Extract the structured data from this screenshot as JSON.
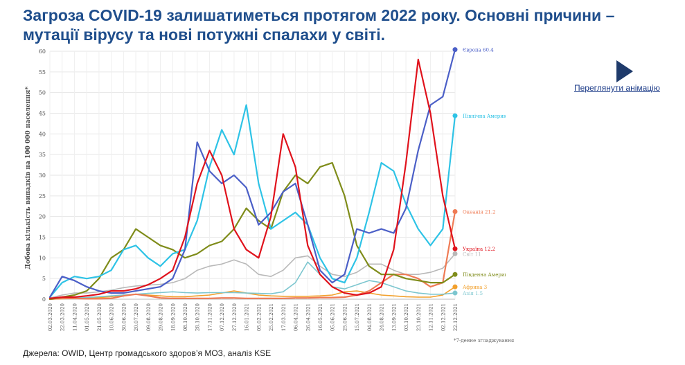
{
  "header": {
    "title": "Загроза COVID-19 залишатиметься протягом 2022 року. Основні причини – мутації вірусу та нові потужні спалахи у світі."
  },
  "animation": {
    "link_label": "Переглянути анімацію",
    "icon": "play-icon"
  },
  "footer": {
    "source": "Джерела: OWID, Центр громадського здоров’я МОЗ, аналіз KSE",
    "note": "*7-денне згладжування"
  },
  "colors": {
    "title": "#1f4e8c",
    "link": "#1f3e8a"
  },
  "chart_data": {
    "type": "line",
    "title": "",
    "ylabel": "Добова кількість випадків на 100 000 населення*",
    "xlabel": "",
    "ylim": [
      0,
      60
    ],
    "yticks": [
      0,
      5,
      10,
      15,
      20,
      25,
      30,
      35,
      40,
      45,
      50,
      55,
      60
    ],
    "grid": true,
    "xticks": [
      "02.03.2020",
      "22.03.2020",
      "11.04.2020",
      "01.05.2020",
      "21.05.2020",
      "10.06.2020",
      "30.06.2020",
      "20.07.2020",
      "09.08.2020",
      "29.08.2020",
      "18.09.2020",
      "08.10.2020",
      "28.10.2020",
      "17.11.2020",
      "07.12.2020",
      "27.12.2020",
      "16.01.2021",
      "05.02.2021",
      "25.02.2021",
      "17.03.2021",
      "06.04.2021",
      "26.04.2021",
      "16.05.2021",
      "05.06.2021",
      "25.06.2021",
      "15.07.2021",
      "04.08.2021",
      "24.08.2021",
      "13.09.2021",
      "03.10.2021",
      "23.10.2021",
      "12.11.2021",
      "02.12.2021",
      "22.12.2021"
    ],
    "x": [
      0,
      3,
      6,
      9,
      12,
      15,
      18,
      21,
      24,
      27,
      30,
      33,
      36,
      39,
      42,
      45,
      48,
      51,
      54,
      57,
      60,
      63,
      66,
      69,
      72,
      75,
      78,
      81,
      84,
      87,
      90,
      93,
      96,
      99
    ],
    "series": [
      {
        "name": "Європа",
        "end_label": "Європа 60.4",
        "color": "#4b5fc7",
        "values": [
          0.5,
          5.5,
          4.5,
          3.0,
          2.0,
          1.5,
          1.5,
          2.0,
          2.5,
          3.0,
          5.0,
          12.0,
          38.0,
          31.0,
          28.0,
          30.0,
          27.0,
          18.0,
          21.0,
          26.0,
          28.0,
          18.0,
          7.0,
          4.0,
          6.0,
          17.0,
          16.0,
          17.0,
          16.0,
          22.0,
          36.0,
          47.0,
          49.0,
          60.4
        ]
      },
      {
        "name": "Північна Америка",
        "end_label": "Північна Америка 44.4",
        "color": "#2ec3e6",
        "values": [
          0.5,
          4.0,
          5.5,
          5.0,
          5.5,
          7.0,
          12.0,
          13.0,
          10.0,
          8.0,
          11.0,
          12.0,
          19.0,
          32.0,
          41.0,
          35.0,
          47.0,
          28.0,
          17.0,
          19.0,
          21.0,
          18.0,
          10.0,
          5.0,
          4.0,
          10.0,
          21.0,
          33.0,
          31.0,
          23.0,
          17.0,
          13.0,
          17.0,
          44.4
        ]
      },
      {
        "name": "Україна",
        "end_label": "Україна 12.2",
        "color": "#e0121c",
        "values": [
          0.2,
          0.5,
          0.5,
          0.8,
          1.2,
          2.0,
          2.0,
          2.5,
          3.5,
          5.0,
          7.0,
          15.0,
          28.0,
          36.0,
          30.0,
          17.0,
          12.0,
          10.0,
          20.0,
          40.0,
          32.0,
          13.0,
          6.0,
          3.0,
          1.5,
          1.0,
          1.5,
          3.0,
          12.0,
          33.0,
          58.0,
          45.0,
          25.0,
          12.2
        ]
      },
      {
        "name": "Південна Америка",
        "end_label": "Південна Америка 6",
        "color": "#7f8c1a",
        "values": [
          0.0,
          0.5,
          1.0,
          2.0,
          5.0,
          10.0,
          12.0,
          17.0,
          15.0,
          13.0,
          12.0,
          10.0,
          11.0,
          13.0,
          14.0,
          17.0,
          22.0,
          19.0,
          17.0,
          26.0,
          30.0,
          28.0,
          32.0,
          33.0,
          25.0,
          13.0,
          8.0,
          6.0,
          6.0,
          5.0,
          4.5,
          4.0,
          4.0,
          6.0
        ]
      },
      {
        "name": "Океанія",
        "end_label": "Океанія 21.2",
        "color": "#ef7b55",
        "values": [
          0,
          0.2,
          0.2,
          0.1,
          0.1,
          0.2,
          0.8,
          1.2,
          0.8,
          0.3,
          0.2,
          0.2,
          0.2,
          0.2,
          0.3,
          0.3,
          0.2,
          0.2,
          0.2,
          0.2,
          0.3,
          0.3,
          0.4,
          0.4,
          0.5,
          1.0,
          2.0,
          4.0,
          6.0,
          6.0,
          5.0,
          3.0,
          4.0,
          21.2
        ]
      },
      {
        "name": "Світ",
        "end_label": "Світ 11",
        "color": "#b9b9b9",
        "values": [
          0.3,
          1.0,
          1.5,
          1.5,
          1.8,
          2.2,
          2.8,
          3.2,
          3.4,
          3.6,
          4.0,
          5.0,
          7.0,
          8.0,
          8.5,
          9.5,
          8.5,
          6.0,
          5.5,
          7.0,
          10.0,
          10.5,
          8.0,
          6.0,
          5.5,
          6.5,
          8.5,
          8.5,
          7.0,
          6.0,
          6.0,
          6.5,
          7.5,
          11.0
        ]
      },
      {
        "name": "Африка",
        "end_label": "Африка 3",
        "color": "#f2a02c",
        "values": [
          0,
          0.1,
          0.2,
          0.3,
          0.4,
          0.6,
          1.0,
          1.2,
          1.0,
          0.8,
          0.6,
          0.6,
          0.8,
          1.0,
          1.5,
          2.0,
          1.5,
          1.0,
          0.8,
          0.7,
          0.7,
          0.7,
          0.8,
          1.0,
          1.8,
          2.0,
          1.5,
          1.0,
          0.8,
          0.6,
          0.5,
          0.5,
          1.0,
          3.0
        ]
      },
      {
        "name": "Азія",
        "end_label": "Азія 1.5",
        "color": "#7cc6cf",
        "values": [
          0,
          0.2,
          0.3,
          0.4,
          0.6,
          0.8,
          1.0,
          1.2,
          1.4,
          1.6,
          1.8,
          1.6,
          1.5,
          1.6,
          1.6,
          1.6,
          1.5,
          1.4,
          1.3,
          1.8,
          4.0,
          9.0,
          6.0,
          3.0,
          2.5,
          3.5,
          4.5,
          4.0,
          3.0,
          2.0,
          1.5,
          1.2,
          1.2,
          1.5
        ]
      }
    ]
  }
}
